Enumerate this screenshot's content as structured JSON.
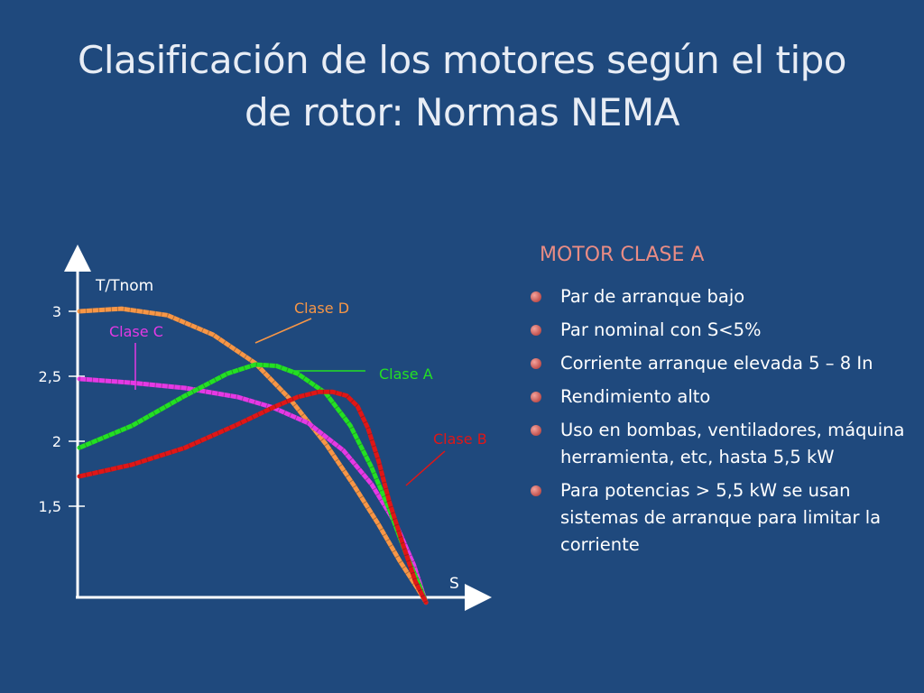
{
  "title_line1": "Clasificación de los motores según el tipo",
  "title_line2": "de rotor: Normas NEMA",
  "panel": {
    "heading": "MOTOR CLASE A",
    "bullets": [
      "Par de arranque bajo",
      "Par nominal con S<5%",
      "Corriente arranque elevada 5 – 8 In",
      "Rendimiento alto",
      "Uso en bombas, ventiladores, máquina herramienta, etc, hasta 5,5 kW",
      "Para potencias > 5,5 kW se usan sistemas de arranque para limitar la corriente"
    ]
  },
  "chart_data": {
    "type": "line",
    "ylabel": "T/Tnom",
    "xlabel": "S",
    "yticks": [
      {
        "value": 3,
        "label": "3"
      },
      {
        "value": 2.5,
        "label": "2,5"
      },
      {
        "value": 2,
        "label": "2"
      },
      {
        "value": 1.5,
        "label": "1,5"
      }
    ],
    "ylim": [
      0.8,
      3.45
    ],
    "xlim": [
      0,
      1
    ],
    "x_direction": "slip decreasing left to right (S = 1 at left, S = 0 at right)",
    "series": [
      {
        "name": "Clase D",
        "color": "#f79646",
        "x": [
          0.0,
          0.12,
          0.25,
          0.38,
          0.5,
          0.6,
          0.7,
          0.78,
          0.85,
          0.91,
          0.96,
          0.985
        ],
        "y": [
          3.0,
          3.02,
          2.97,
          2.82,
          2.6,
          2.32,
          1.98,
          1.66,
          1.36,
          1.08,
          0.87,
          0.76
        ]
      },
      {
        "name": "Clase C",
        "color": "#e539e5",
        "x": [
          0.0,
          0.15,
          0.3,
          0.45,
          0.55,
          0.65,
          0.75,
          0.83,
          0.9,
          0.95,
          0.985
        ],
        "y": [
          2.48,
          2.45,
          2.41,
          2.34,
          2.26,
          2.14,
          1.93,
          1.67,
          1.36,
          1.05,
          0.76
        ]
      },
      {
        "name": "Clase A",
        "color": "#23e023",
        "x": [
          0.0,
          0.15,
          0.3,
          0.42,
          0.5,
          0.56,
          0.62,
          0.7,
          0.77,
          0.83,
          0.88,
          0.93,
          0.965,
          0.985
        ],
        "y": [
          1.95,
          2.12,
          2.35,
          2.52,
          2.59,
          2.58,
          2.52,
          2.37,
          2.12,
          1.8,
          1.48,
          1.12,
          0.9,
          0.76
        ]
      },
      {
        "name": "Clase B",
        "color": "#e01616",
        "x": [
          0.0,
          0.15,
          0.3,
          0.45,
          0.55,
          0.62,
          0.68,
          0.72,
          0.76,
          0.79,
          0.82,
          0.85,
          0.88,
          0.92,
          0.955,
          0.985
        ],
        "y": [
          1.73,
          1.82,
          1.95,
          2.13,
          2.26,
          2.34,
          2.38,
          2.38,
          2.35,
          2.27,
          2.1,
          1.85,
          1.54,
          1.2,
          0.92,
          0.76
        ]
      }
    ],
    "annotations": [
      {
        "text": "Clase D",
        "color": "#f79646"
      },
      {
        "text": "Clase C",
        "color": "#e539e5"
      },
      {
        "text": "Clase A",
        "color": "#23e023"
      },
      {
        "text": "Clase B",
        "color": "#e01616"
      }
    ],
    "axis_color": "#ffffff",
    "grid": false,
    "legend": "none (inline curve labels)"
  }
}
